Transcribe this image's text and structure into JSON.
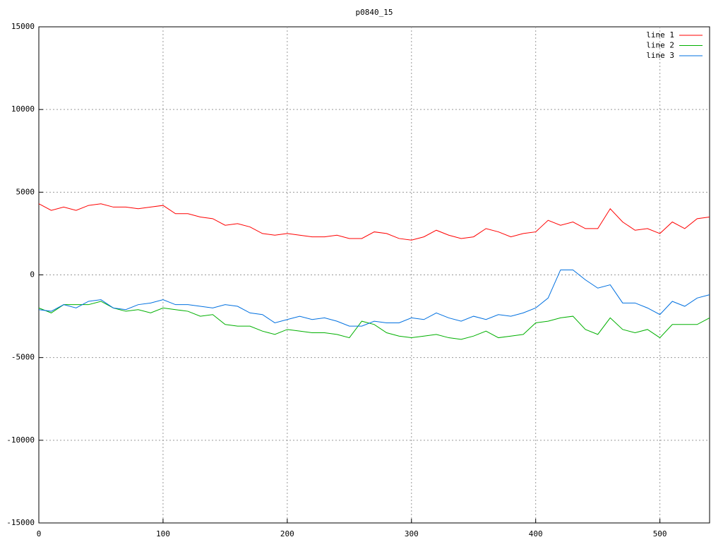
{
  "chart_data": {
    "type": "line",
    "title": "p0840_15",
    "x": [
      0,
      10,
      20,
      30,
      40,
      50,
      60,
      70,
      80,
      90,
      100,
      110,
      120,
      130,
      140,
      150,
      160,
      170,
      180,
      190,
      200,
      210,
      220,
      230,
      240,
      250,
      260,
      270,
      280,
      290,
      300,
      310,
      320,
      330,
      340,
      350,
      360,
      370,
      380,
      390,
      400,
      410,
      420,
      430,
      440,
      450,
      460,
      470,
      480,
      490,
      500,
      510,
      520,
      530,
      540
    ],
    "series": [
      {
        "name": "line 1",
        "color": "#ff0000",
        "values": [
          4300,
          3900,
          4100,
          3900,
          4200,
          4300,
          4100,
          4100,
          4000,
          4100,
          4200,
          3700,
          3700,
          3500,
          3400,
          3000,
          3100,
          2900,
          2500,
          2400,
          2500,
          2400,
          2300,
          2300,
          2400,
          2200,
          2200,
          2600,
          2500,
          2200,
          2100,
          2300,
          2700,
          2400,
          2200,
          2300,
          2800,
          2600,
          2300,
          2500,
          2600,
          3300,
          3000,
          3200,
          2800,
          2800,
          4000,
          3200,
          2700,
          2800,
          2500,
          3200,
          2800,
          3400,
          3500
        ]
      },
      {
        "name": "line 2",
        "color": "#00b000",
        "values": [
          -2000,
          -2300,
          -1800,
          -1800,
          -1800,
          -1600,
          -2000,
          -2200,
          -2100,
          -2300,
          -2000,
          -2100,
          -2200,
          -2500,
          -2400,
          -3000,
          -3100,
          -3100,
          -3400,
          -3600,
          -3300,
          -3400,
          -3500,
          -3500,
          -3600,
          -3800,
          -2800,
          -3000,
          -3500,
          -3700,
          -3800,
          -3700,
          -3600,
          -3800,
          -3900,
          -3700,
          -3400,
          -3800,
          -3700,
          -3600,
          -2900,
          -2800,
          -2600,
          -2500,
          -3300,
          -3600,
          -2600,
          -3300,
          -3500,
          -3300,
          -3800,
          -3000,
          -3000,
          -3000,
          -2600
        ]
      },
      {
        "name": "line 3",
        "color": "#0070e0",
        "values": [
          -2100,
          -2200,
          -1800,
          -2000,
          -1600,
          -1500,
          -2000,
          -2100,
          -1800,
          -1700,
          -1500,
          -1800,
          -1800,
          -1900,
          -2000,
          -1800,
          -1900,
          -2300,
          -2400,
          -2900,
          -2700,
          -2500,
          -2700,
          -2600,
          -2800,
          -3100,
          -3100,
          -2800,
          -2900,
          -2900,
          -2600,
          -2700,
          -2300,
          -2600,
          -2800,
          -2500,
          -2700,
          -2400,
          -2500,
          -2300,
          -2000,
          -1400,
          300,
          300,
          -300,
          -800,
          -600,
          -1700,
          -1700,
          -2000,
          -2400,
          -1600,
          -1900,
          -1400,
          -1200
        ]
      }
    ],
    "xlim": [
      0,
      540
    ],
    "xticks": [
      0,
      100,
      200,
      300,
      400,
      500
    ],
    "ylim": [
      -15000,
      15000
    ],
    "yticks": [
      -15000,
      -10000,
      -5000,
      0,
      5000,
      10000,
      15000
    ],
    "grid": true,
    "legend": "top-right"
  }
}
